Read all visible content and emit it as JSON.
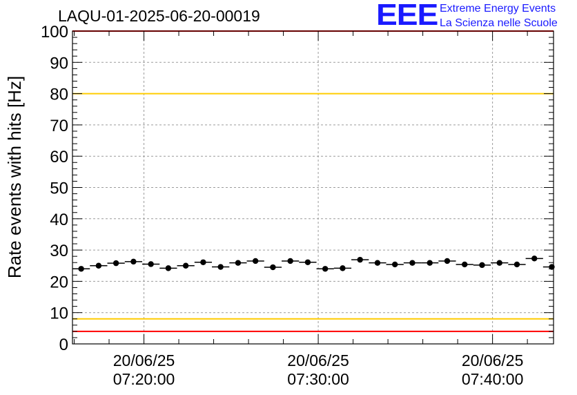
{
  "header": {
    "run_title": "LAQU-01-2025-06-20-00019"
  },
  "logo": {
    "mark": "EEE",
    "line1": "Extreme Energy Events",
    "line2": "La Scienza nelle Scuole",
    "color": "#1a1aff"
  },
  "chart_data": {
    "type": "scatter",
    "title": "LAQU-01-2025-06-20-00019",
    "ylabel": "Rate events with hits [Hz]",
    "xlabel": "",
    "ylim": [
      0,
      100
    ],
    "yticks": [
      0,
      10,
      20,
      30,
      40,
      50,
      60,
      70,
      80,
      90,
      100
    ],
    "xlim_minutes": [
      15.9,
      43.5
    ],
    "xticks": [
      {
        "minute": 20,
        "date": "20/06/25",
        "time": "07:20:00"
      },
      {
        "minute": 30,
        "date": "20/06/25",
        "time": "07:30:00"
      },
      {
        "minute": 40,
        "date": "20/06/25",
        "time": "07:40:00"
      }
    ],
    "grid": true,
    "bin_width_minutes": 1,
    "series": [
      {
        "name": "rate",
        "x_minutes": [
          16.4,
          17.4,
          18.4,
          19.4,
          20.4,
          21.4,
          22.4,
          23.4,
          24.4,
          25.4,
          26.4,
          27.4,
          28.4,
          29.4,
          30.4,
          31.4,
          32.4,
          33.4,
          34.4,
          35.4,
          36.4,
          37.4,
          38.4,
          39.4,
          40.4,
          41.4,
          42.4,
          43.4
        ],
        "values": [
          24.0,
          25.0,
          25.8,
          26.3,
          25.5,
          24.2,
          25.0,
          26.1,
          24.6,
          25.9,
          26.5,
          24.5,
          26.5,
          26.1,
          24.0,
          24.2,
          26.9,
          25.9,
          25.4,
          25.9,
          25.9,
          26.5,
          25.4,
          25.2,
          25.9,
          25.4,
          27.3,
          24.6
        ],
        "color": "#000000"
      }
    ],
    "reference_lines": [
      {
        "value": 100,
        "color": "#ff0000"
      },
      {
        "value": 80,
        "color": "#ffcc00"
      },
      {
        "value": 8,
        "color": "#ffcc00"
      },
      {
        "value": 4,
        "color": "#ff0000"
      }
    ]
  }
}
